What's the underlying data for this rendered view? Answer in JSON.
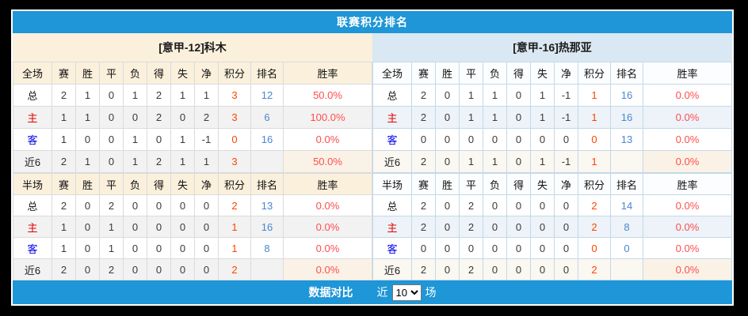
{
  "title": "联赛积分排名",
  "colors": {
    "accent": "#1E96D7",
    "home_header_bg": "#FAF0DC",
    "away_header_bg": "#D9E8F3",
    "home_border": "#DBDBDB",
    "away_border": "#C3D9E9",
    "home_stripe": "#F2F2F2",
    "away_stripe": "#EDF3F8",
    "points_color": "#FF4400",
    "rank_color": "#4A86D2",
    "rate_color": "#FF4D4D",
    "home_label_color": "#E60000",
    "away_label_color": "#0000EE"
  },
  "teams": [
    {
      "side": "home",
      "name": "[意甲-12]科木",
      "tables": [
        {
          "scope": "全场",
          "headers": [
            "赛",
            "胜",
            "平",
            "负",
            "得",
            "失",
            "净",
            "积分",
            "排名",
            "胜率"
          ],
          "rows": [
            {
              "label": "总",
              "type": "total",
              "values": [
                "2",
                "1",
                "0",
                "1",
                "2",
                "1",
                "1"
              ],
              "points": "3",
              "rank": "12",
              "rate": "50.0%"
            },
            {
              "label": "主",
              "type": "home",
              "values": [
                "1",
                "1",
                "0",
                "0",
                "2",
                "0",
                "2"
              ],
              "points": "3",
              "rank": "6",
              "rate": "100.0%"
            },
            {
              "label": "客",
              "type": "away",
              "values": [
                "1",
                "0",
                "0",
                "1",
                "0",
                "1",
                "-1"
              ],
              "points": "0",
              "rank": "16",
              "rate": "0.0%"
            },
            {
              "label": "近6",
              "type": "recent",
              "values": [
                "2",
                "1",
                "0",
                "1",
                "2",
                "1",
                "1"
              ],
              "points": "3",
              "rank": "",
              "rate": "50.0%"
            }
          ]
        },
        {
          "scope": "半场",
          "headers": [
            "赛",
            "胜",
            "平",
            "负",
            "得",
            "失",
            "净",
            "积分",
            "排名",
            "胜率"
          ],
          "rows": [
            {
              "label": "总",
              "type": "total",
              "values": [
                "2",
                "0",
                "2",
                "0",
                "0",
                "0",
                "0"
              ],
              "points": "2",
              "rank": "13",
              "rate": "0.0%"
            },
            {
              "label": "主",
              "type": "home",
              "values": [
                "1",
                "0",
                "1",
                "0",
                "0",
                "0",
                "0"
              ],
              "points": "1",
              "rank": "16",
              "rate": "0.0%"
            },
            {
              "label": "客",
              "type": "away",
              "values": [
                "1",
                "0",
                "1",
                "0",
                "0",
                "0",
                "0"
              ],
              "points": "1",
              "rank": "8",
              "rate": "0.0%"
            },
            {
              "label": "近6",
              "type": "recent",
              "values": [
                "2",
                "0",
                "2",
                "0",
                "0",
                "0",
                "0"
              ],
              "points": "2",
              "rank": "",
              "rate": "0.0%"
            }
          ]
        }
      ]
    },
    {
      "side": "away",
      "name": "[意甲-16]热那亚",
      "tables": [
        {
          "scope": "全场",
          "headers": [
            "赛",
            "胜",
            "平",
            "负",
            "得",
            "失",
            "净",
            "积分",
            "排名",
            "胜率"
          ],
          "rows": [
            {
              "label": "总",
              "type": "total",
              "values": [
                "2",
                "0",
                "1",
                "1",
                "0",
                "1",
                "-1"
              ],
              "points": "1",
              "rank": "16",
              "rate": "0.0%"
            },
            {
              "label": "主",
              "type": "home",
              "values": [
                "2",
                "0",
                "1",
                "1",
                "0",
                "1",
                "-1"
              ],
              "points": "1",
              "rank": "16",
              "rate": "0.0%"
            },
            {
              "label": "客",
              "type": "away",
              "values": [
                "0",
                "0",
                "0",
                "0",
                "0",
                "0",
                "0"
              ],
              "points": "0",
              "rank": "13",
              "rate": "0.0%"
            },
            {
              "label": "近6",
              "type": "recent",
              "values": [
                "2",
                "0",
                "1",
                "1",
                "0",
                "1",
                "-1"
              ],
              "points": "1",
              "rank": "",
              "rate": "0.0%"
            }
          ]
        },
        {
          "scope": "半场",
          "headers": [
            "赛",
            "胜",
            "平",
            "负",
            "得",
            "失",
            "净",
            "积分",
            "排名",
            "胜率"
          ],
          "rows": [
            {
              "label": "总",
              "type": "total",
              "values": [
                "2",
                "0",
                "2",
                "0",
                "0",
                "0",
                "0"
              ],
              "points": "2",
              "rank": "14",
              "rate": "0.0%"
            },
            {
              "label": "主",
              "type": "home",
              "values": [
                "2",
                "0",
                "2",
                "0",
                "0",
                "0",
                "0"
              ],
              "points": "2",
              "rank": "8",
              "rate": "0.0%"
            },
            {
              "label": "客",
              "type": "away",
              "values": [
                "0",
                "0",
                "0",
                "0",
                "0",
                "0",
                "0"
              ],
              "points": "0",
              "rank": "0",
              "rate": "0.0%"
            },
            {
              "label": "近6",
              "type": "recent",
              "values": [
                "2",
                "0",
                "2",
                "0",
                "0",
                "0",
                "0"
              ],
              "points": "2",
              "rank": "",
              "rate": "0.0%"
            }
          ]
        }
      ]
    }
  ],
  "footer": {
    "compare_label": "数据对比",
    "recent_label": "近",
    "selected_count": "10",
    "matches_label": "场"
  }
}
